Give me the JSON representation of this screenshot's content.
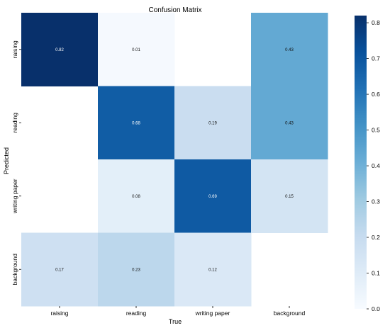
{
  "chart_data": {
    "type": "heatmap",
    "title": "Confusion Matrix",
    "xlabel": "True",
    "ylabel": "Predicted",
    "x_categories": [
      "raising",
      "reading",
      "writing paper",
      "background"
    ],
    "y_categories": [
      "raising",
      "reading",
      "writing paper",
      "background"
    ],
    "values": [
      [
        0.82,
        0.01,
        null,
        0.43
      ],
      [
        null,
        0.68,
        0.19,
        0.43
      ],
      [
        null,
        0.08,
        0.69,
        0.15
      ],
      [
        0.17,
        0.23,
        0.12,
        null
      ]
    ],
    "colorbar": {
      "range": [
        0.0,
        0.82
      ],
      "ticks": [
        "0.0",
        "0.1",
        "0.2",
        "0.3",
        "0.4",
        "0.5",
        "0.6",
        "0.7",
        "0.8"
      ],
      "colormap": "Blues"
    }
  }
}
